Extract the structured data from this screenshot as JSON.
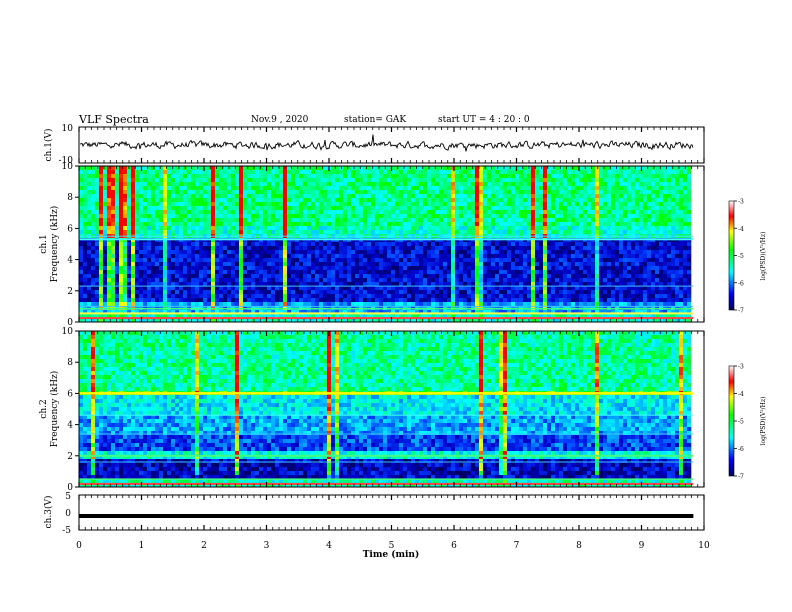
{
  "header": {
    "title": "VLF Spectra",
    "date": "Nov.9  , 2020",
    "station": "station= GAK",
    "start": "start  UT =   4 : 20 : 0"
  },
  "chart_data": [
    {
      "type": "line",
      "panel": "ch1-waveform",
      "ylabel": "ch.1(V)",
      "ylim": [
        -10,
        10
      ],
      "yticks": [
        "10",
        "-10"
      ],
      "baseline": 0,
      "xlim": [
        0,
        10
      ],
      "color": "#000000"
    },
    {
      "type": "heatmap",
      "panel": "ch1-spectrogram",
      "ylabel_top": "ch.1",
      "ylabel": "Frequency  (kHz)",
      "ylim": [
        0,
        10
      ],
      "yticks": [
        "0",
        "2",
        "4",
        "6",
        "8",
        "10"
      ],
      "xlim": [
        0,
        10
      ],
      "colorbar_label": "log(PSD)(V²/Hz)",
      "colorbar_ticks": [
        "-3",
        "-4",
        "-5",
        "-6",
        "-7"
      ],
      "colorbar_range": [
        -7,
        -3
      ]
    },
    {
      "type": "heatmap",
      "panel": "ch2-spectrogram",
      "ylabel_top": "ch.2",
      "ylabel": "Frequency  (kHz)",
      "ylim": [
        0,
        10
      ],
      "yticks": [
        "0",
        "2",
        "4",
        "6",
        "8",
        "10"
      ],
      "xlim": [
        0,
        10
      ],
      "colorbar_label": "log(PSD)(V²/Hz)",
      "colorbar_ticks": [
        "-3",
        "-4",
        "-5",
        "-6",
        "-7"
      ],
      "colorbar_range": [
        -7,
        -3
      ]
    },
    {
      "type": "line",
      "panel": "ch3-trace",
      "ylabel": "ch.3(V)",
      "ylim": [
        -5,
        5
      ],
      "yticks": [
        "5",
        "0",
        "-5"
      ],
      "value": -1,
      "xlim": [
        0,
        10
      ],
      "color": "#000000"
    }
  ],
  "xaxis": {
    "label": "Time  (min)",
    "ticks": [
      "0",
      "1",
      "2",
      "3",
      "4",
      "5",
      "6",
      "7",
      "8",
      "9",
      "10"
    ],
    "data_end": 9.83
  }
}
